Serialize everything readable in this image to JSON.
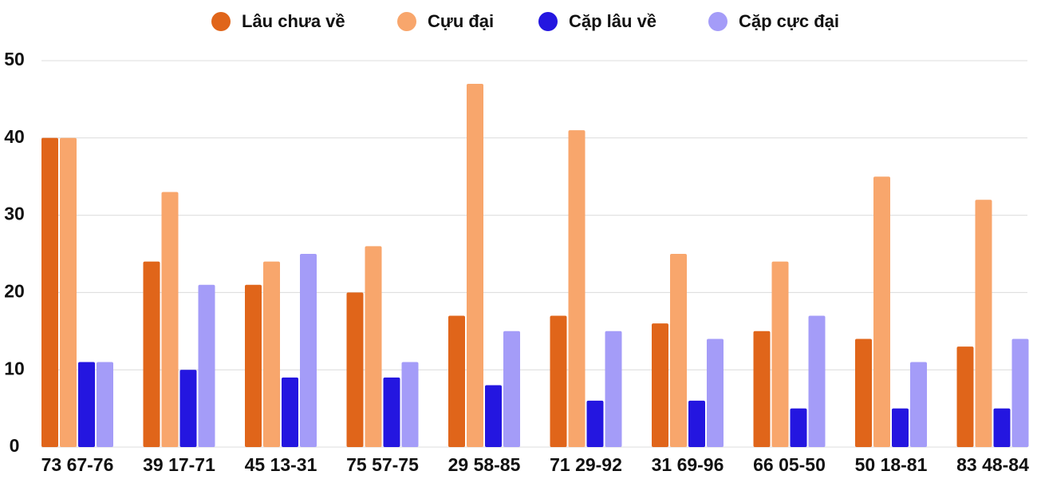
{
  "chart_data": {
    "type": "bar",
    "categories": [
      "73 67-76",
      "39 17-71",
      "45 13-31",
      "75 57-75",
      "29 58-85",
      "71 29-92",
      "31 69-96",
      "66 05-50",
      "50 18-81",
      "83 48-84"
    ],
    "series": [
      {
        "name": "Lâu chưa về",
        "color": "#e0651a",
        "values": [
          40,
          24,
          21,
          20,
          17,
          17,
          16,
          15,
          14,
          13
        ]
      },
      {
        "name": "Cựu đại",
        "color": "#f8a66c",
        "values": [
          40,
          33,
          24,
          26,
          47,
          41,
          25,
          24,
          35,
          32
        ]
      },
      {
        "name": "Cặp lâu về",
        "color": "#2416e0",
        "values": [
          11,
          10,
          9,
          9,
          8,
          6,
          6,
          5,
          5,
          5
        ]
      },
      {
        "name": "Cặp cực đại",
        "color": "#a49cf8",
        "values": [
          11,
          21,
          25,
          11,
          15,
          15,
          14,
          17,
          11,
          14
        ]
      }
    ],
    "ylim": [
      0,
      50
    ],
    "yticks": [
      0,
      10,
      20,
      30,
      40,
      50
    ],
    "grid": true,
    "legend": "top"
  }
}
